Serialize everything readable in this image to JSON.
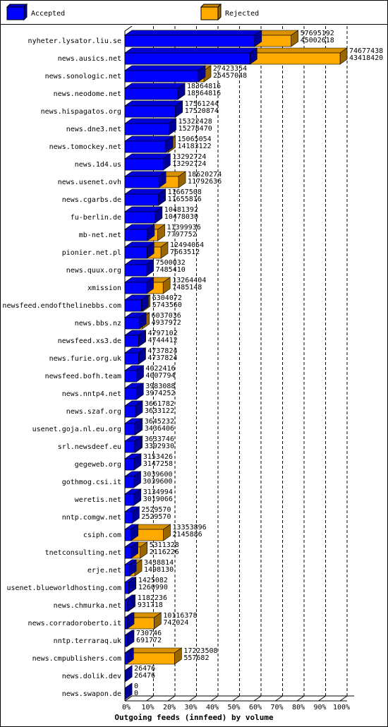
{
  "chart_data": {
    "type": "bar",
    "orientation": "horizontal",
    "x_label": "Outgoing feeds (innfeed) by volume",
    "categories": [
      "nyheter.lysator.liu.se",
      "news.ausics.net",
      "news.sonologic.net",
      "news.neodome.net",
      "news.hispagatos.org",
      "news.dne3.net",
      "news.tomockey.net",
      "news.1d4.us",
      "news.usenet.ovh",
      "news.cgarbs.de",
      "fu-berlin.de",
      "mb-net.net",
      "pionier.net.pl",
      "news.quux.org",
      "xmission",
      "newsfeed.endofthelinebbs.com",
      "news.bbs.nz",
      "newsfeed.xs3.de",
      "news.furie.org.uk",
      "newsfeed.bofh.team",
      "news.nntp4.net",
      "news.szaf.org",
      "usenet.goja.nl.eu.org",
      "srl.newsdeef.eu",
      "gegeweb.org",
      "gothmog.csi.it",
      "weretis.net",
      "nntp.comgw.net",
      "csiph.com",
      "tnetconsulting.net",
      "erje.net",
      "usenet.blueworldhosting.com",
      "news.chmurka.net",
      "news.corradoroberto.it",
      "nntp.terraraq.uk",
      "news.cmpublishers.com",
      "news.dolik.dev",
      "news.swapon.de"
    ],
    "series": [
      {
        "name": "Accepted",
        "color": "#0000ff",
        "values": [
          45002618,
          43418420,
          25457048,
          18364816,
          17520874,
          15278470,
          14183122,
          13292724,
          11792636,
          11655816,
          10478030,
          7797752,
          7663512,
          7485410,
          7485148,
          5743560,
          4937972,
          4744412,
          4737824,
          4007794,
          3974252,
          3633122,
          3436406,
          3392930,
          3147258,
          3039600,
          3019066,
          2529570,
          2145886,
          2116226,
          1498130,
          1260990,
          931718,
          742024,
          691772,
          557682,
          26476,
          0
        ]
      },
      {
        "name": "Rejected",
        "color": "#ffaa00",
        "values": [
          57695192,
          74677438,
          27423354,
          18364816,
          17561244,
          15322428,
          15065054,
          13292724,
          18620274,
          11667508,
          10481392,
          11399936,
          12494054,
          7500032,
          13264404,
          6304072,
          6037036,
          4797102,
          4737824,
          4022416,
          3983088,
          3661782,
          3645232,
          3633746,
          3153426,
          3039600,
          3134994,
          2529570,
          13353896,
          5311328,
          3438814,
          1425082,
          1182236,
          10116378,
          730746,
          17223508,
          26476,
          0
        ]
      }
    ],
    "xlim": [
      0,
      74677438
    ],
    "xticks": [
      {
        "value": 0,
        "label": "0%"
      },
      {
        "value": 7467743.8,
        "label": "10%"
      },
      {
        "value": 14935487.6,
        "label": "20%"
      },
      {
        "value": 22403231.4,
        "label": "30%"
      },
      {
        "value": 29870975.2,
        "label": "40%"
      },
      {
        "value": 37338719,
        "label": "50%"
      },
      {
        "value": 44806462.8,
        "label": "60%"
      },
      {
        "value": 52274206.6,
        "label": "70%"
      },
      {
        "value": 59741950.4,
        "label": "80%"
      },
      {
        "value": 67209694.2,
        "label": "90%"
      },
      {
        "value": 74677438,
        "label": "100%"
      }
    ],
    "grid": true
  }
}
